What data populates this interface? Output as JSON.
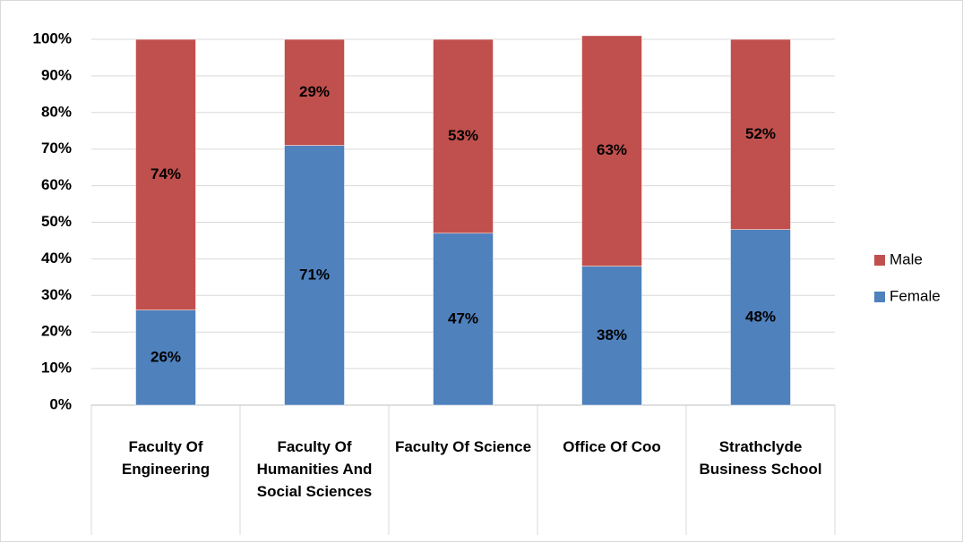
{
  "chart_data": {
    "type": "bar",
    "stacked": true,
    "categories": [
      "Faculty Of Engineering",
      "Faculty Of Humanities And Social Sciences",
      "Faculty Of Science",
      "Office Of Coo",
      "Strathclyde Business School"
    ],
    "series": [
      {
        "name": "Female",
        "color": "#4f81bd",
        "values": [
          26,
          71,
          47,
          38,
          48
        ],
        "value_labels": [
          "26%",
          "71%",
          "47%",
          "38%",
          "48%"
        ]
      },
      {
        "name": "Male",
        "color": "#c0504d",
        "values": [
          74,
          29,
          53,
          63,
          52
        ],
        "value_labels": [
          "74%",
          "29%",
          "53%",
          "63%",
          "52%"
        ]
      }
    ],
    "ylim": [
      0,
      100
    ],
    "yticks": [
      {
        "value": 0,
        "label": "0%"
      },
      {
        "value": 10,
        "label": "10%"
      },
      {
        "value": 20,
        "label": "20%"
      },
      {
        "value": 30,
        "label": "30%"
      },
      {
        "value": 40,
        "label": "40%"
      },
      {
        "value": 50,
        "label": "50%"
      },
      {
        "value": 60,
        "label": "60%"
      },
      {
        "value": 70,
        "label": "70%"
      },
      {
        "value": 80,
        "label": "80%"
      },
      {
        "value": 90,
        "label": "90%"
      },
      {
        "value": 100,
        "label": "100%"
      }
    ],
    "grid": true,
    "legend": "right"
  }
}
